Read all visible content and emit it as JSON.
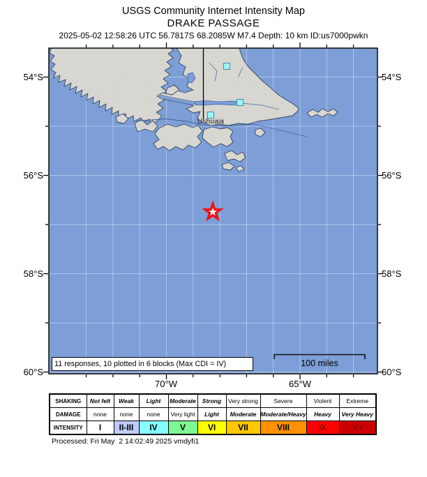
{
  "header": {
    "title": "USGS Community Internet Intensity Map",
    "subtitle": "DRAKE PASSAGE",
    "event_info": "2025-05-02 12:58:26 UTC 56.7817S 68.2085W M7.4 Depth: 10 km ID:us7000pwkn"
  },
  "axis": {
    "lat_left": [
      "54°S",
      "56°S",
      "58°S",
      "60°S"
    ],
    "lat_right": [
      "54°S",
      "56°S",
      "58°S",
      "60°S"
    ],
    "lon_bottom": [
      "70°W",
      "65°W"
    ]
  },
  "map": {
    "city_label": "Ushuaia",
    "responses_note": "11 responses, 10 plotted in 6 blocks (Max CDI = IV)",
    "scale_label": "100 miles",
    "epicenter": {
      "lat": "56.7817S",
      "lon": "68.2085W",
      "magnitude": "M7.4"
    },
    "colors": {
      "ocean": "#7D9ED7",
      "land": "#D8D7D2",
      "coastline": "#33455C",
      "response_block": "#9BF5F5",
      "epicenter_star": "#EE1111"
    }
  },
  "legend": {
    "rows": [
      {
        "label": "SHAKING",
        "cells": [
          "Not felt",
          "Weak",
          "Light",
          "Moderate",
          "Strong",
          "Very strong",
          "Severe",
          "Violent",
          "Extreme"
        ]
      },
      {
        "label": "DAMAGE",
        "cells": [
          "none",
          "none",
          "none",
          "Very light",
          "Light",
          "Moderate",
          "Moderate/Heavy",
          "Heavy",
          "Very Heavy"
        ]
      },
      {
        "label": "INTENSITY",
        "cells": [
          "I",
          "II-III",
          "IV",
          "V",
          "VI",
          "VII",
          "VIII",
          "IX",
          "X+"
        ]
      }
    ],
    "intensity_colors": [
      "#FFFFFF",
      "#BFCCFF",
      "#85FFFF",
      "#7DF894",
      "#FFFF00",
      "#FFC800",
      "#FF9100",
      "#FF0000",
      "#CC0000"
    ]
  },
  "footer": {
    "processed": "Processed: Fri May  2 14:02:49 2025 vmdyfi1"
  }
}
